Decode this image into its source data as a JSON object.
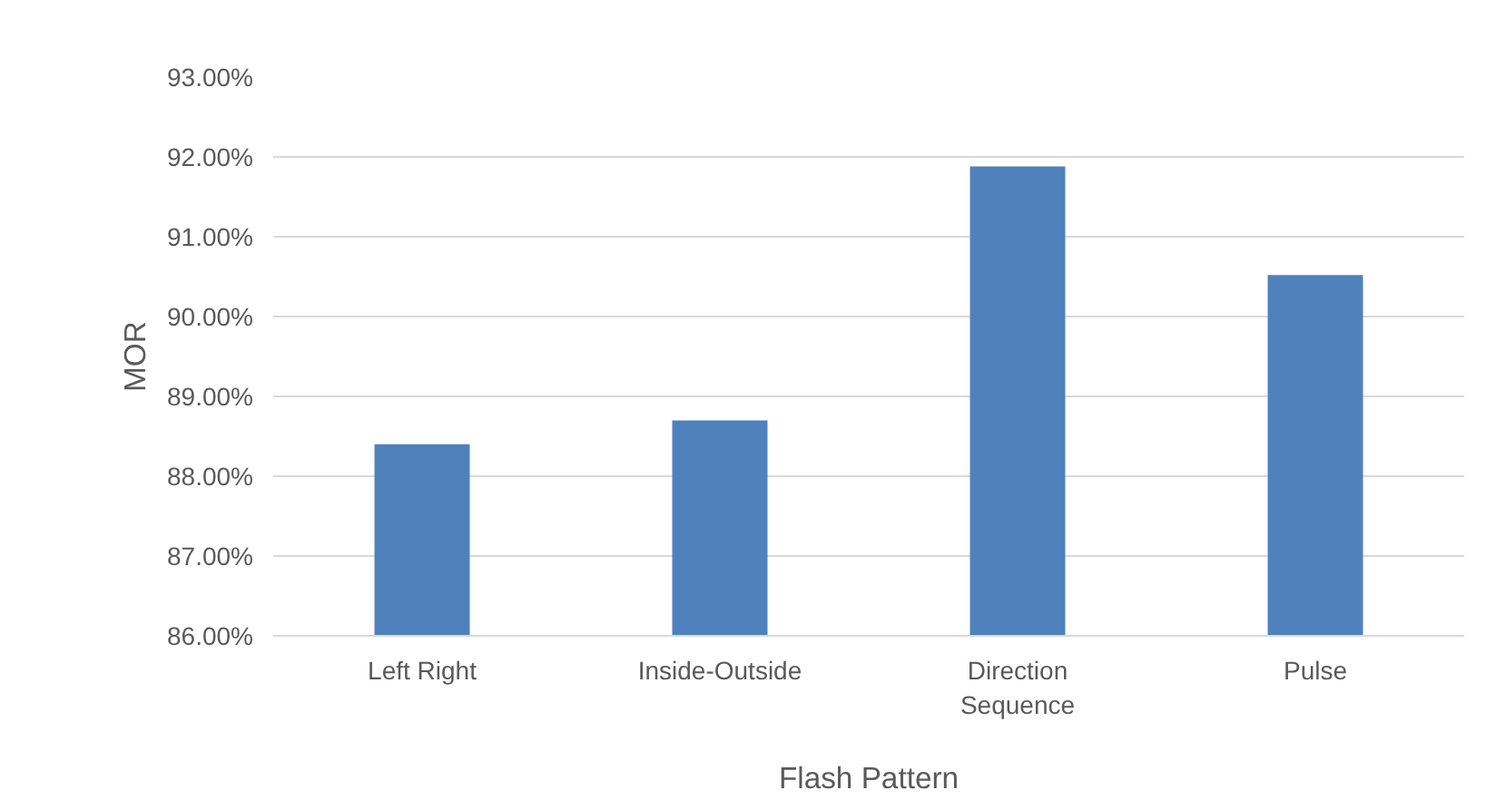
{
  "chart_data": {
    "type": "bar",
    "xlabel": "Flash Pattern",
    "ylabel": "MOR",
    "categories": [
      "Left Right",
      "Inside-Outside",
      "Direction Sequence",
      "Pulse"
    ],
    "values": [
      88.4,
      88.7,
      91.88,
      90.52
    ],
    "color": "#4f81bd",
    "ylim": [
      86,
      93
    ],
    "yticks": [
      {
        "value": 86,
        "label": "86.00%"
      },
      {
        "value": 87,
        "label": "87.00%"
      },
      {
        "value": 88,
        "label": "88.00%"
      },
      {
        "value": 89,
        "label": "89.00%"
      },
      {
        "value": 90,
        "label": "90.00%"
      },
      {
        "value": 91,
        "label": "91.00%"
      },
      {
        "value": 92,
        "label": "92.00%"
      },
      {
        "value": 93,
        "label": "93.00%"
      }
    ],
    "grid": "y"
  }
}
